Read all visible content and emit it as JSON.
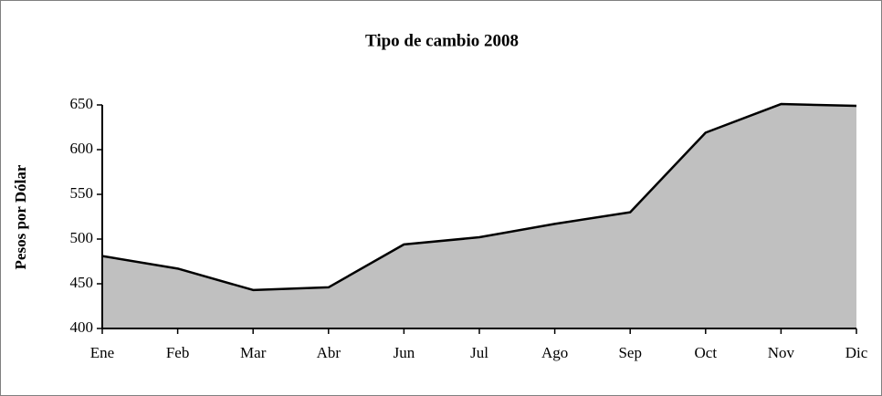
{
  "chart_data": {
    "type": "area",
    "title": "Tipo de cambio 2008",
    "ylabel": "Pesos por Dólar",
    "categories": [
      "Ene",
      "Feb",
      "Mar",
      "Abr",
      "Jun",
      "Jul",
      "Ago",
      "Sep",
      "Oct",
      "Nov",
      "Dic"
    ],
    "values": [
      481,
      467,
      443,
      446,
      494,
      502,
      517,
      530,
      619,
      651,
      649
    ],
    "color": "#c0c0c0",
    "line_color": "#000000",
    "ylim": [
      400,
      650
    ],
    "yticks": [
      400,
      450,
      500,
      550,
      600,
      650
    ],
    "grid": false
  }
}
